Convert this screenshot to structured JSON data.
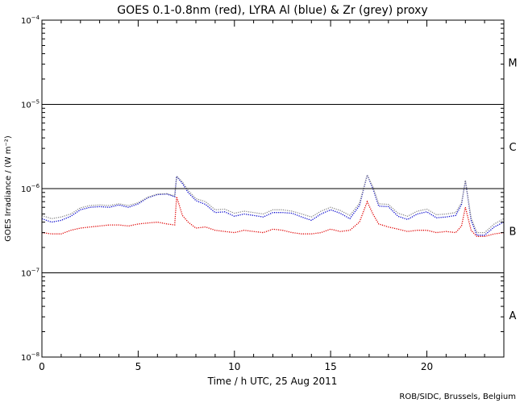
{
  "chart_data": {
    "type": "line",
    "title": "GOES 0.1-0.8nm (red), LYRA Al (blue) & Zr (grey) proxy",
    "xlabel": "Time / h UTC, 25 Aug 2011",
    "ylabel": "GOES Irradiance / (W m⁻²)",
    "credit": "ROB/SIDC, Brussels, Belgium",
    "xlim": [
      0,
      24
    ],
    "ylim": [
      1e-08,
      0.0001
    ],
    "yscale": "log",
    "x_ticks": [
      {
        "value": 0,
        "label": "0"
      },
      {
        "value": 5,
        "label": "5"
      },
      {
        "value": 10,
        "label": "10"
      },
      {
        "value": 15,
        "label": "15"
      },
      {
        "value": 20,
        "label": "20"
      }
    ],
    "y_ticks": [
      {
        "value": 1e-08,
        "base": "10",
        "exp": "−8"
      },
      {
        "value": 1e-07,
        "base": "10",
        "exp": "−7"
      },
      {
        "value": 1e-06,
        "base": "10",
        "exp": "−6"
      },
      {
        "value": 1e-05,
        "base": "10",
        "exp": "−5"
      },
      {
        "value": 0.0001,
        "base": "10",
        "exp": "−4"
      }
    ],
    "class_lines": [
      1e-07,
      1e-06,
      1e-05
    ],
    "class_labels": [
      {
        "label": "A",
        "value": 3.16e-08
      },
      {
        "label": "B",
        "value": 3.16e-07
      },
      {
        "label": "C",
        "value": 3.16e-06
      },
      {
        "label": "M",
        "value": 3.16e-05
      }
    ],
    "series": [
      {
        "color": "#e00000",
        "x": [
          0,
          0.5,
          1,
          1.5,
          2,
          2.5,
          3,
          3.5,
          4,
          4.5,
          5,
          5.5,
          6,
          6.5,
          6.9,
          7.0,
          7.3,
          7.6,
          8.0,
          8.5,
          9.0,
          9.5,
          10.0,
          10.5,
          11.0,
          11.5,
          12.0,
          12.5,
          13.0,
          13.5,
          14.0,
          14.5,
          15.0,
          15.5,
          16.0,
          16.5,
          16.9,
          17.2,
          17.5,
          18.0,
          18.5,
          19.0,
          19.5,
          20.0,
          20.5,
          21.0,
          21.5,
          21.8,
          22.0,
          22.3,
          22.6,
          23.0,
          23.5,
          24.0
        ],
        "y": [
          3e-07,
          2.9e-07,
          2.9e-07,
          3.2e-07,
          3.4e-07,
          3.5e-07,
          3.6e-07,
          3.7e-07,
          3.7e-07,
          3.6e-07,
          3.8e-07,
          3.9e-07,
          4e-07,
          3.8e-07,
          3.7e-07,
          8e-07,
          4.8e-07,
          4e-07,
          3.4e-07,
          3.5e-07,
          3.2e-07,
          3.1e-07,
          3e-07,
          3.2e-07,
          3.1e-07,
          3e-07,
          3.3e-07,
          3.2e-07,
          3e-07,
          2.9e-07,
          2.9e-07,
          3e-07,
          3.3e-07,
          3.1e-07,
          3.2e-07,
          4e-07,
          7e-07,
          5e-07,
          3.8e-07,
          3.5e-07,
          3.3e-07,
          3.1e-07,
          3.2e-07,
          3.2e-07,
          3e-07,
          3.1e-07,
          3e-07,
          3.6e-07,
          6e-07,
          3.2e-07,
          2.7e-07,
          2.7e-07,
          2.9e-07,
          3e-07
        ]
      },
      {
        "color": "#0000cc",
        "x": [
          0,
          0.5,
          1,
          1.5,
          2,
          2.5,
          3,
          3.5,
          4,
          4.5,
          5,
          5.5,
          6,
          6.5,
          6.9,
          7.0,
          7.3,
          7.6,
          8.0,
          8.5,
          9.0,
          9.5,
          10.0,
          10.5,
          11.0,
          11.5,
          12.0,
          12.5,
          13.0,
          13.5,
          14.0,
          14.5,
          15.0,
          15.5,
          16.0,
          16.5,
          16.9,
          17.2,
          17.5,
          18.0,
          18.5,
          19.0,
          19.5,
          20.0,
          20.5,
          21.0,
          21.5,
          21.8,
          22.0,
          22.3,
          22.6,
          23.0,
          23.5,
          24.0
        ],
        "y": [
          4.4e-07,
          4e-07,
          4.2e-07,
          4.7e-07,
          5.6e-07,
          6e-07,
          6.1e-07,
          6e-07,
          6.4e-07,
          6e-07,
          6.6e-07,
          7.8e-07,
          8.5e-07,
          8.6e-07,
          8e-07,
          1.4e-06,
          1.15e-06,
          9e-07,
          7.2e-07,
          6.5e-07,
          5.2e-07,
          5.3e-07,
          4.7e-07,
          5e-07,
          4.8e-07,
          4.6e-07,
          5.2e-07,
          5.2e-07,
          5.1e-07,
          4.6e-07,
          4.2e-07,
          5e-07,
          5.6e-07,
          5.1e-07,
          4.4e-07,
          6.3e-07,
          1.45e-06,
          1e-06,
          6.2e-07,
          6.1e-07,
          4.7e-07,
          4.3e-07,
          5e-07,
          5.3e-07,
          4.5e-07,
          4.6e-07,
          4.8e-07,
          6.5e-07,
          1.25e-06,
          4.2e-07,
          2.8e-07,
          2.8e-07,
          3.5e-07,
          4e-07
        ]
      },
      {
        "color": "#888888",
        "x": [
          0,
          0.5,
          1,
          1.5,
          2,
          2.5,
          3,
          3.5,
          4,
          4.5,
          5,
          5.5,
          6,
          6.5,
          6.9,
          7.0,
          7.3,
          7.6,
          8.0,
          8.5,
          9.0,
          9.5,
          10.0,
          10.5,
          11.0,
          11.5,
          12.0,
          12.5,
          13.0,
          13.5,
          14.0,
          14.5,
          15.0,
          15.5,
          16.0,
          16.5,
          16.9,
          17.2,
          17.5,
          18.0,
          18.5,
          19.0,
          19.5,
          20.0,
          20.5,
          21.0,
          21.5,
          21.8,
          22.0,
          22.3,
          22.6,
          23.0,
          23.5,
          24.0
        ],
        "y": [
          4.8e-07,
          4.4e-07,
          4.6e-07,
          5e-07,
          5.9e-07,
          6.3e-07,
          6.4e-07,
          6.3e-07,
          6.6e-07,
          6.3e-07,
          6.8e-07,
          7.9e-07,
          8.6e-07,
          8.7e-07,
          8.2e-07,
          1.4e-06,
          1.2e-06,
          9.5e-07,
          7.6e-07,
          7e-07,
          5.6e-07,
          5.7e-07,
          5.1e-07,
          5.4e-07,
          5.2e-07,
          5e-07,
          5.6e-07,
          5.6e-07,
          5.4e-07,
          5e-07,
          4.6e-07,
          5.4e-07,
          6e-07,
          5.5e-07,
          4.8e-07,
          6.7e-07,
          1.45e-06,
          1.05e-06,
          6.6e-07,
          6.5e-07,
          5.1e-07,
          4.7e-07,
          5.4e-07,
          5.7e-07,
          4.9e-07,
          5e-07,
          5.2e-07,
          6.8e-07,
          1.25e-06,
          4.5e-07,
          3e-07,
          3e-07,
          3.8e-07,
          4.4e-07
        ]
      }
    ]
  }
}
